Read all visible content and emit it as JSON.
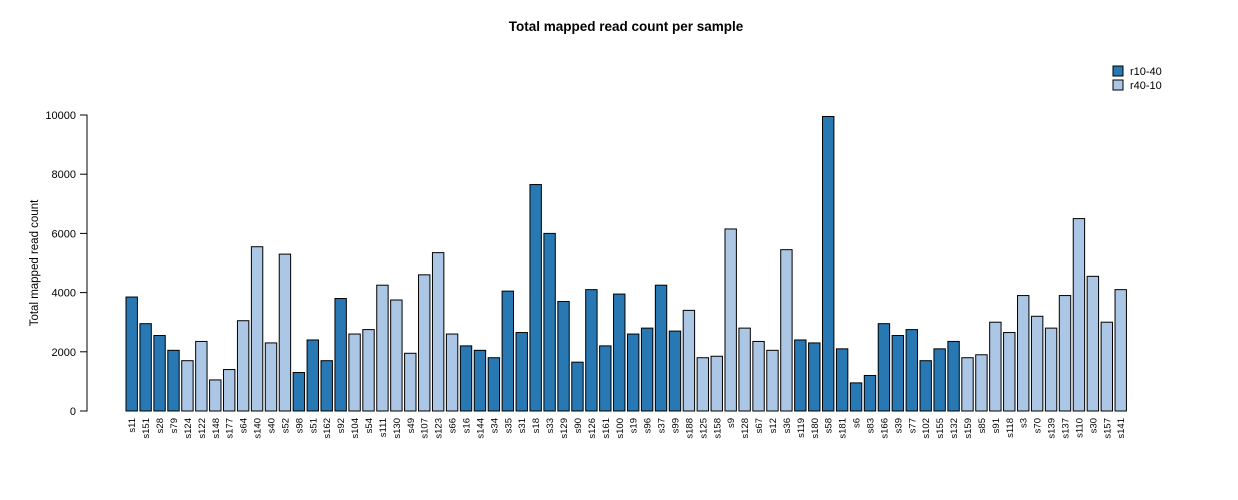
{
  "chart_data": {
    "type": "bar",
    "title": "Total mapped read count per sample",
    "ylabel": "Total mapped read count",
    "xlabel": "",
    "ylim": [
      0,
      10000
    ],
    "yticks": [
      0,
      2000,
      4000,
      6000,
      8000,
      10000
    ],
    "grid": false,
    "legend_position": "top-right",
    "series": [
      {
        "name": "r10-40",
        "color": "#2878b4"
      },
      {
        "name": "r40-10",
        "color": "#acc6e6"
      }
    ],
    "bars": [
      {
        "label": "s11",
        "series": "r10-40",
        "value": 3850
      },
      {
        "label": "s151",
        "series": "r10-40",
        "value": 2950
      },
      {
        "label": "s28",
        "series": "r10-40",
        "value": 2550
      },
      {
        "label": "s79",
        "series": "r10-40",
        "value": 2050
      },
      {
        "label": "s124",
        "series": "r40-10",
        "value": 1700
      },
      {
        "label": "s122",
        "series": "r40-10",
        "value": 2350
      },
      {
        "label": "s148",
        "series": "r40-10",
        "value": 1050
      },
      {
        "label": "s177",
        "series": "r40-10",
        "value": 1400
      },
      {
        "label": "s64",
        "series": "r40-10",
        "value": 3050
      },
      {
        "label": "s140",
        "series": "r40-10",
        "value": 5550
      },
      {
        "label": "s40",
        "series": "r40-10",
        "value": 2300
      },
      {
        "label": "s52",
        "series": "r40-10",
        "value": 5300
      },
      {
        "label": "s98",
        "series": "r10-40",
        "value": 1300
      },
      {
        "label": "s51",
        "series": "r10-40",
        "value": 2400
      },
      {
        "label": "s162",
        "series": "r10-40",
        "value": 1700
      },
      {
        "label": "s92",
        "series": "r10-40",
        "value": 3800
      },
      {
        "label": "s104",
        "series": "r40-10",
        "value": 2600
      },
      {
        "label": "s54",
        "series": "r40-10",
        "value": 2750
      },
      {
        "label": "s111",
        "series": "r40-10",
        "value": 4250
      },
      {
        "label": "s130",
        "series": "r40-10",
        "value": 3750
      },
      {
        "label": "s49",
        "series": "r40-10",
        "value": 1950
      },
      {
        "label": "s107",
        "series": "r40-10",
        "value": 4600
      },
      {
        "label": "s123",
        "series": "r40-10",
        "value": 5350
      },
      {
        "label": "s66",
        "series": "r40-10",
        "value": 2600
      },
      {
        "label": "s16",
        "series": "r10-40",
        "value": 2200
      },
      {
        "label": "s144",
        "series": "r10-40",
        "value": 2050
      },
      {
        "label": "s34",
        "series": "r10-40",
        "value": 1800
      },
      {
        "label": "s35",
        "series": "r10-40",
        "value": 4050
      },
      {
        "label": "s31",
        "series": "r10-40",
        "value": 2650
      },
      {
        "label": "s18",
        "series": "r10-40",
        "value": 7650
      },
      {
        "label": "s33",
        "series": "r10-40",
        "value": 6000
      },
      {
        "label": "s129",
        "series": "r10-40",
        "value": 3700
      },
      {
        "label": "s90",
        "series": "r10-40",
        "value": 1650
      },
      {
        "label": "s126",
        "series": "r10-40",
        "value": 4100
      },
      {
        "label": "s161",
        "series": "r10-40",
        "value": 2200
      },
      {
        "label": "s100",
        "series": "r10-40",
        "value": 3950
      },
      {
        "label": "s19",
        "series": "r10-40",
        "value": 2600
      },
      {
        "label": "s96",
        "series": "r10-40",
        "value": 2800
      },
      {
        "label": "s37",
        "series": "r10-40",
        "value": 4250
      },
      {
        "label": "s99",
        "series": "r10-40",
        "value": 2700
      },
      {
        "label": "s188",
        "series": "r40-10",
        "value": 3400
      },
      {
        "label": "s125",
        "series": "r40-10",
        "value": 1800
      },
      {
        "label": "s158",
        "series": "r40-10",
        "value": 1850
      },
      {
        "label": "s9",
        "series": "r40-10",
        "value": 6150
      },
      {
        "label": "s128",
        "series": "r40-10",
        "value": 2800
      },
      {
        "label": "s67",
        "series": "r40-10",
        "value": 2350
      },
      {
        "label": "s12",
        "series": "r40-10",
        "value": 2050
      },
      {
        "label": "s36",
        "series": "r40-10",
        "value": 5450
      },
      {
        "label": "s119",
        "series": "r10-40",
        "value": 2400
      },
      {
        "label": "s180",
        "series": "r10-40",
        "value": 2300
      },
      {
        "label": "s58",
        "series": "r10-40",
        "value": 9950
      },
      {
        "label": "s181",
        "series": "r10-40",
        "value": 2100
      },
      {
        "label": "s6",
        "series": "r10-40",
        "value": 950
      },
      {
        "label": "s83",
        "series": "r10-40",
        "value": 1200
      },
      {
        "label": "s166",
        "series": "r10-40",
        "value": 2950
      },
      {
        "label": "s39",
        "series": "r10-40",
        "value": 2550
      },
      {
        "label": "s77",
        "series": "r10-40",
        "value": 2750
      },
      {
        "label": "s102",
        "series": "r10-40",
        "value": 1700
      },
      {
        "label": "s155",
        "series": "r10-40",
        "value": 2100
      },
      {
        "label": "s132",
        "series": "r10-40",
        "value": 2350
      },
      {
        "label": "s159",
        "series": "r40-10",
        "value": 1800
      },
      {
        "label": "s85",
        "series": "r40-10",
        "value": 1900
      },
      {
        "label": "s91",
        "series": "r40-10",
        "value": 3000
      },
      {
        "label": "s118",
        "series": "r40-10",
        "value": 2650
      },
      {
        "label": "s3",
        "series": "r40-10",
        "value": 3900
      },
      {
        "label": "s70",
        "series": "r40-10",
        "value": 3200
      },
      {
        "label": "s139",
        "series": "r40-10",
        "value": 2800
      },
      {
        "label": "s137",
        "series": "r40-10",
        "value": 3900
      },
      {
        "label": "s110",
        "series": "r40-10",
        "value": 6500
      },
      {
        "label": "s30",
        "series": "r40-10",
        "value": 4550
      },
      {
        "label": "s157",
        "series": "r40-10",
        "value": 3000
      },
      {
        "label": "s141",
        "series": "r40-10",
        "value": 4100
      }
    ]
  }
}
